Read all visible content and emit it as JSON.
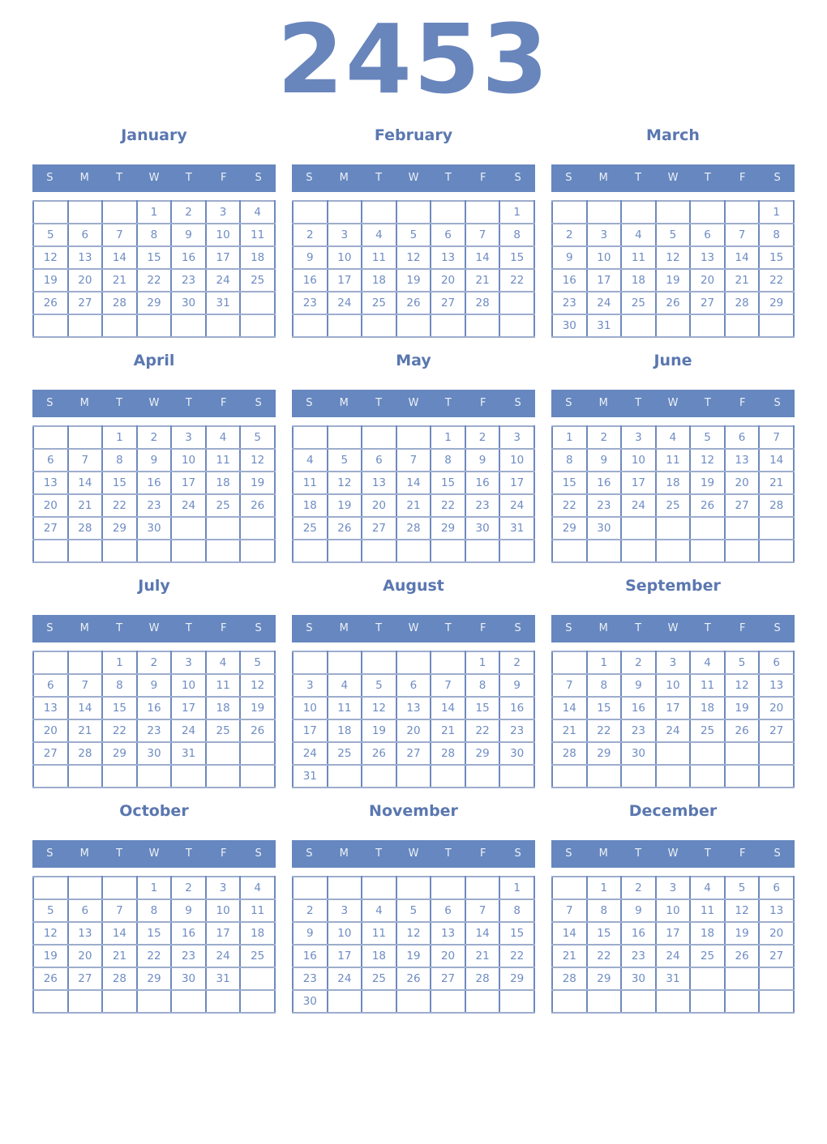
{
  "title": "2453",
  "colors": {
    "title_text": "#6885bc",
    "month_name_text": "#5a77b0",
    "weekday_bar_bg": "#6687bf",
    "weekday_text": "#edf1f7",
    "date_text": "#6e8cc3",
    "grid_border_vertical": "#6e89bd",
    "grid_border_horizontal": "#9dadcd",
    "page_bg": "#ffffff"
  },
  "day_headers": [
    "S",
    "M",
    "T",
    "W",
    "T",
    "F",
    "S"
  ],
  "months": [
    {
      "name": "January",
      "weeks": [
        [
          "",
          "",
          "",
          "1",
          "2",
          "3",
          "4"
        ],
        [
          "5",
          "6",
          "7",
          "8",
          "9",
          "10",
          "11"
        ],
        [
          "12",
          "13",
          "14",
          "15",
          "16",
          "17",
          "18"
        ],
        [
          "19",
          "20",
          "21",
          "22",
          "23",
          "24",
          "25"
        ],
        [
          "26",
          "27",
          "28",
          "29",
          "30",
          "31",
          ""
        ],
        [
          "",
          "",
          "",
          "",
          "",
          "",
          ""
        ]
      ]
    },
    {
      "name": "February",
      "weeks": [
        [
          "",
          "",
          "",
          "",
          "",
          "",
          "1"
        ],
        [
          "2",
          "3",
          "4",
          "5",
          "6",
          "7",
          "8"
        ],
        [
          "9",
          "10",
          "11",
          "12",
          "13",
          "14",
          "15"
        ],
        [
          "16",
          "17",
          "18",
          "19",
          "20",
          "21",
          "22"
        ],
        [
          "23",
          "24",
          "25",
          "26",
          "27",
          "28",
          ""
        ],
        [
          "",
          "",
          "",
          "",
          "",
          "",
          ""
        ]
      ]
    },
    {
      "name": "March",
      "weeks": [
        [
          "",
          "",
          "",
          "",
          "",
          "",
          "1"
        ],
        [
          "2",
          "3",
          "4",
          "5",
          "6",
          "7",
          "8"
        ],
        [
          "9",
          "10",
          "11",
          "12",
          "13",
          "14",
          "15"
        ],
        [
          "16",
          "17",
          "18",
          "19",
          "20",
          "21",
          "22"
        ],
        [
          "23",
          "24",
          "25",
          "26",
          "27",
          "28",
          "29"
        ],
        [
          "30",
          "31",
          "",
          "",
          "",
          "",
          ""
        ]
      ]
    },
    {
      "name": "April",
      "weeks": [
        [
          "",
          "",
          "1",
          "2",
          "3",
          "4",
          "5"
        ],
        [
          "6",
          "7",
          "8",
          "9",
          "10",
          "11",
          "12"
        ],
        [
          "13",
          "14",
          "15",
          "16",
          "17",
          "18",
          "19"
        ],
        [
          "20",
          "21",
          "22",
          "23",
          "24",
          "25",
          "26"
        ],
        [
          "27",
          "28",
          "29",
          "30",
          "",
          "",
          ""
        ],
        [
          "",
          "",
          "",
          "",
          "",
          "",
          ""
        ]
      ]
    },
    {
      "name": "May",
      "weeks": [
        [
          "",
          "",
          "",
          "",
          "1",
          "2",
          "3"
        ],
        [
          "4",
          "5",
          "6",
          "7",
          "8",
          "9",
          "10"
        ],
        [
          "11",
          "12",
          "13",
          "14",
          "15",
          "16",
          "17"
        ],
        [
          "18",
          "19",
          "20",
          "21",
          "22",
          "23",
          "24"
        ],
        [
          "25",
          "26",
          "27",
          "28",
          "29",
          "30",
          "31"
        ],
        [
          "",
          "",
          "",
          "",
          "",
          "",
          ""
        ]
      ]
    },
    {
      "name": "June",
      "weeks": [
        [
          "1",
          "2",
          "3",
          "4",
          "5",
          "6",
          "7"
        ],
        [
          "8",
          "9",
          "10",
          "11",
          "12",
          "13",
          "14"
        ],
        [
          "15",
          "16",
          "17",
          "18",
          "19",
          "20",
          "21"
        ],
        [
          "22",
          "23",
          "24",
          "25",
          "26",
          "27",
          "28"
        ],
        [
          "29",
          "30",
          "",
          "",
          "",
          "",
          ""
        ],
        [
          "",
          "",
          "",
          "",
          "",
          "",
          ""
        ]
      ]
    },
    {
      "name": "July",
      "weeks": [
        [
          "",
          "",
          "1",
          "2",
          "3",
          "4",
          "5"
        ],
        [
          "6",
          "7",
          "8",
          "9",
          "10",
          "11",
          "12"
        ],
        [
          "13",
          "14",
          "15",
          "16",
          "17",
          "18",
          "19"
        ],
        [
          "20",
          "21",
          "22",
          "23",
          "24",
          "25",
          "26"
        ],
        [
          "27",
          "28",
          "29",
          "30",
          "31",
          "",
          ""
        ],
        [
          "",
          "",
          "",
          "",
          "",
          "",
          ""
        ]
      ]
    },
    {
      "name": "August",
      "weeks": [
        [
          "",
          "",
          "",
          "",
          "",
          "1",
          "2"
        ],
        [
          "3",
          "4",
          "5",
          "6",
          "7",
          "8",
          "9"
        ],
        [
          "10",
          "11",
          "12",
          "13",
          "14",
          "15",
          "16"
        ],
        [
          "17",
          "18",
          "19",
          "20",
          "21",
          "22",
          "23"
        ],
        [
          "24",
          "25",
          "26",
          "27",
          "28",
          "29",
          "30"
        ],
        [
          "31",
          "",
          "",
          "",
          "",
          "",
          ""
        ]
      ]
    },
    {
      "name": "September",
      "weeks": [
        [
          "",
          "1",
          "2",
          "3",
          "4",
          "5",
          "6"
        ],
        [
          "7",
          "8",
          "9",
          "10",
          "11",
          "12",
          "13"
        ],
        [
          "14",
          "15",
          "16",
          "17",
          "18",
          "19",
          "20"
        ],
        [
          "21",
          "22",
          "23",
          "24",
          "25",
          "26",
          "27"
        ],
        [
          "28",
          "29",
          "30",
          "",
          "",
          "",
          ""
        ],
        [
          "",
          "",
          "",
          "",
          "",
          "",
          ""
        ]
      ]
    },
    {
      "name": "October",
      "weeks": [
        [
          "",
          "",
          "",
          "1",
          "2",
          "3",
          "4"
        ],
        [
          "5",
          "6",
          "7",
          "8",
          "9",
          "10",
          "11"
        ],
        [
          "12",
          "13",
          "14",
          "15",
          "16",
          "17",
          "18"
        ],
        [
          "19",
          "20",
          "21",
          "22",
          "23",
          "24",
          "25"
        ],
        [
          "26",
          "27",
          "28",
          "29",
          "30",
          "31",
          ""
        ],
        [
          "",
          "",
          "",
          "",
          "",
          "",
          ""
        ]
      ]
    },
    {
      "name": "November",
      "weeks": [
        [
          "",
          "",
          "",
          "",
          "",
          "",
          "1"
        ],
        [
          "2",
          "3",
          "4",
          "5",
          "6",
          "7",
          "8"
        ],
        [
          "9",
          "10",
          "11",
          "12",
          "13",
          "14",
          "15"
        ],
        [
          "16",
          "17",
          "18",
          "19",
          "20",
          "21",
          "22"
        ],
        [
          "23",
          "24",
          "25",
          "26",
          "27",
          "28",
          "29"
        ],
        [
          "30",
          "",
          "",
          "",
          "",
          "",
          ""
        ]
      ]
    },
    {
      "name": "December",
      "weeks": [
        [
          "",
          "1",
          "2",
          "3",
          "4",
          "5",
          "6"
        ],
        [
          "7",
          "8",
          "9",
          "10",
          "11",
          "12",
          "13"
        ],
        [
          "14",
          "15",
          "16",
          "17",
          "18",
          "19",
          "20"
        ],
        [
          "21",
          "22",
          "23",
          "24",
          "25",
          "26",
          "27"
        ],
        [
          "28",
          "29",
          "30",
          "31",
          "",
          "",
          ""
        ],
        [
          "",
          "",
          "",
          "",
          "",
          "",
          ""
        ]
      ]
    }
  ]
}
